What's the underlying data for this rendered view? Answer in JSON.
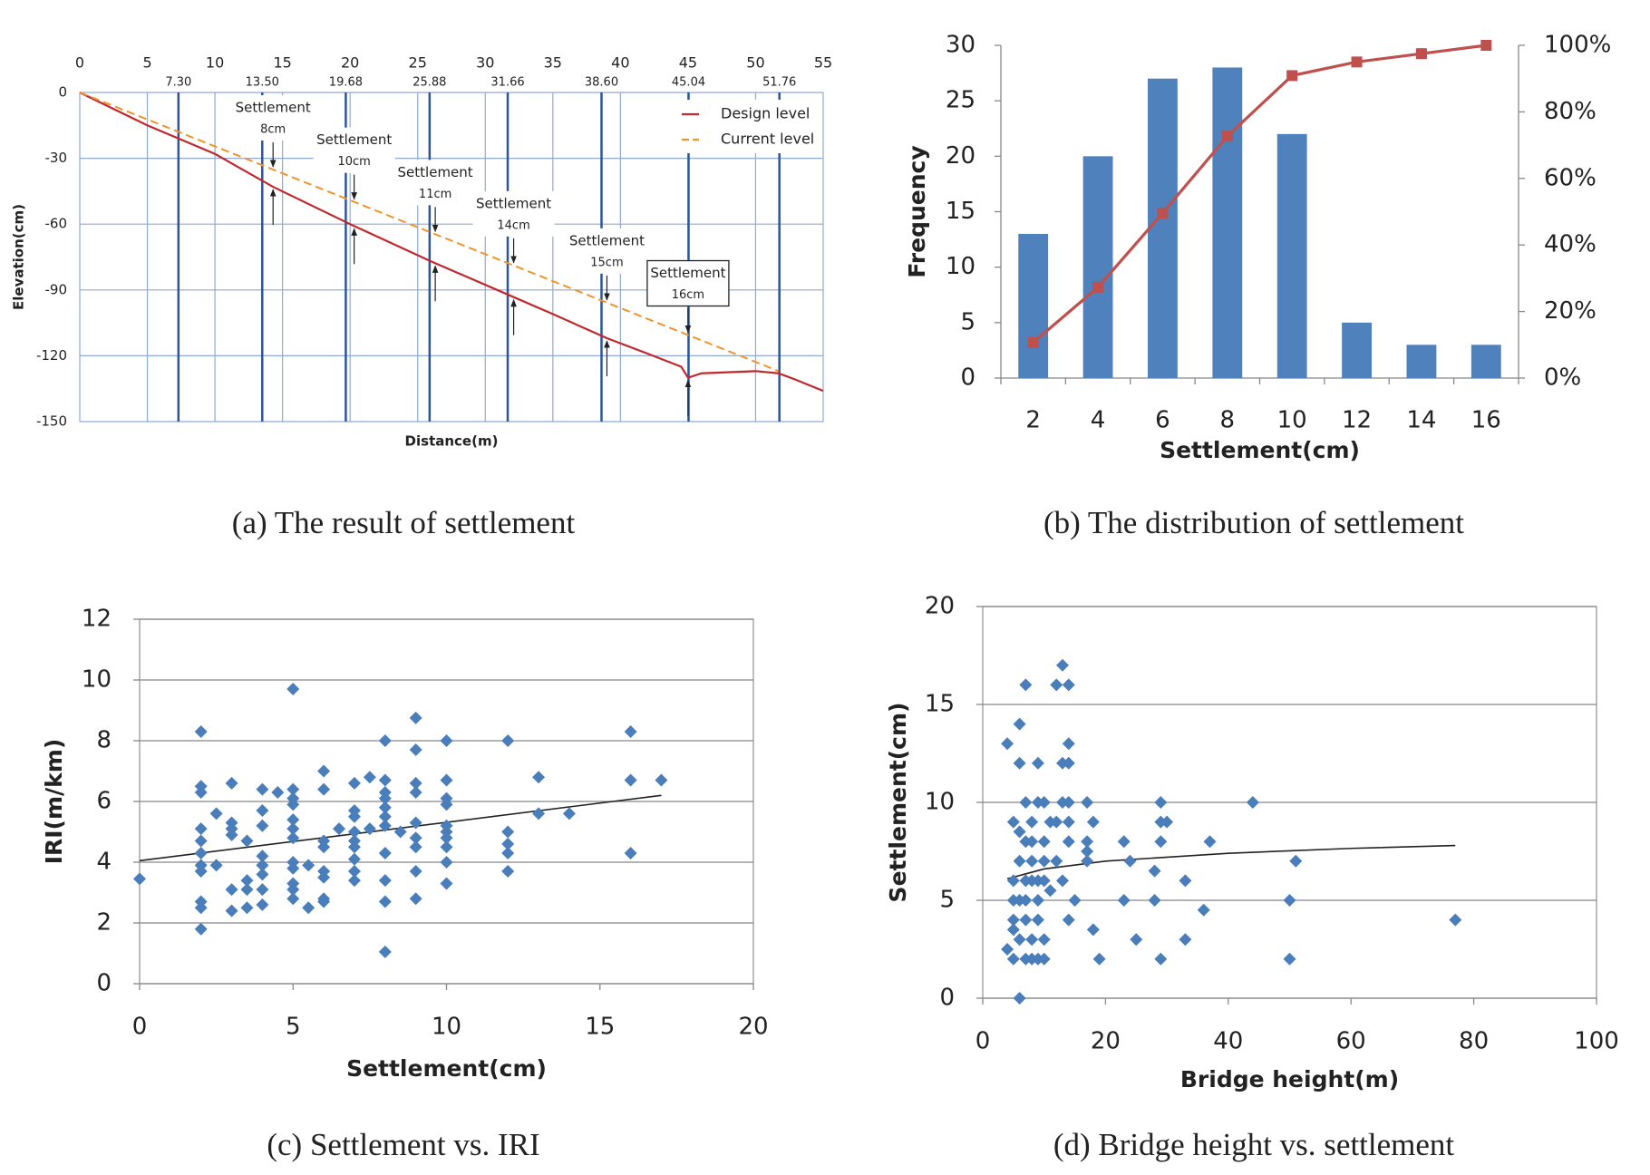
{
  "chart_data": [
    {
      "type": "line",
      "caption": "(a) The result of settlement",
      "xlabel": "Distance(m)",
      "ylabel": "Elevation(cm)",
      "xaxis": "top",
      "grid": true,
      "legend": "upper right",
      "xlim": [
        0,
        55
      ],
      "xticks": [
        0,
        5,
        10,
        15,
        20,
        25,
        30,
        35,
        40,
        45,
        50,
        55
      ],
      "ylim": [
        -150,
        0
      ],
      "yticks": [
        0,
        -30,
        -60,
        -90,
        -120,
        -150
      ],
      "xticks2": [
        {
          "value": 7.3,
          "label": "7.30"
        },
        {
          "value": 13.5,
          "label": "13.50"
        },
        19.68,
        25.88,
        31.66,
        {
          "value": 38.6,
          "label": "38.60"
        },
        45.04,
        51.76
      ],
      "series": [
        {
          "name": "Design level",
          "color": "#c0282d",
          "dash": false,
          "x": [
            0,
            5,
            10,
            14.3,
            20,
            26,
            32,
            35,
            39,
            42,
            44.5,
            45,
            46,
            50,
            51.7,
            53,
            55
          ],
          "values": [
            0,
            -15,
            -28,
            -43,
            -60,
            -77,
            -93,
            -101,
            -112,
            -119,
            -125,
            -130,
            -128,
            -127,
            -128,
            -131,
            -136
          ]
        },
        {
          "name": "Current level",
          "color": "#f0932b",
          "dash": true,
          "x": [
            0,
            51.7
          ],
          "values": [
            0,
            -127
          ]
        }
      ],
      "annotations": [
        {
          "title": "Settlement",
          "text": "8cm",
          "x": 14.3
        },
        {
          "title": "Settlement",
          "text": "10cm",
          "x": 20.3
        },
        {
          "title": "Settlement",
          "text": "11cm",
          "x": 26.3
        },
        {
          "title": "Settlement",
          "text": "14cm",
          "x": 32.1
        },
        {
          "title": "Settlement",
          "text": "15cm",
          "x": 39
        },
        {
          "title": "Settlement",
          "text": "16cm",
          "x": 45
        }
      ]
    },
    {
      "type": "bar",
      "caption": "(b) The distribution of settlement",
      "xlabel": "Settlement(cm)",
      "ylabel": "Frequency",
      "grid": false,
      "categories": [
        2,
        4,
        6,
        8,
        10,
        12,
        14,
        16
      ],
      "ylim": [
        0,
        30
      ],
      "yticks": [
        0,
        5,
        10,
        15,
        20,
        25,
        30
      ],
      "y2lim": [
        0,
        100
      ],
      "y2ticks": [
        {
          "value": 0,
          "label": "0%"
        },
        {
          "value": 20,
          "label": "20%"
        },
        {
          "value": 40,
          "label": "40%"
        },
        {
          "value": 60,
          "label": "60%"
        },
        {
          "value": 80,
          "label": "80%"
        },
        {
          "value": 100,
          "label": "100%"
        }
      ],
      "series": [
        {
          "color": "#4f81bd",
          "values": [
            13,
            20,
            27,
            28,
            22,
            5,
            3,
            3
          ]
        },
        {
          "color": "#c0504d",
          "axis": "y2",
          "values": [
            10.7,
            27.3,
            49.6,
            72.7,
            90.9,
            95.0,
            97.5,
            100
          ]
        }
      ]
    },
    {
      "type": "scatter",
      "caption": "(c) Settlement vs. IRI",
      "xlabel": "Settlement(cm)",
      "ylabel": "IRI(m/km)",
      "grid": true,
      "color": "#4a7ebb",
      "xlim": [
        0,
        20
      ],
      "xticks": [
        0,
        5,
        10,
        15,
        20
      ],
      "ylim": [
        0,
        12
      ],
      "yticks": [
        0,
        2,
        4,
        6,
        8,
        10,
        12
      ],
      "x": [
        0,
        2,
        2,
        2,
        2,
        2,
        2,
        2,
        2,
        2,
        2,
        2,
        2.5,
        2.5,
        3,
        3,
        3,
        3,
        3,
        3,
        3.5,
        3.5,
        3.5,
        3.5,
        4,
        4,
        4,
        4,
        4,
        4,
        4,
        4,
        4.5,
        5,
        5,
        5,
        5,
        5,
        5,
        5,
        5,
        5,
        5,
        5,
        5,
        5.5,
        5.5,
        6,
        6,
        6,
        6,
        6,
        6,
        6,
        6,
        6.5,
        7,
        7,
        7,
        7,
        7,
        7,
        7,
        7,
        7,
        7.5,
        7.5,
        8,
        8,
        8,
        8,
        8,
        8,
        8,
        8,
        8,
        8,
        8,
        8.5,
        9,
        9,
        9,
        9,
        9,
        9,
        9,
        9,
        9,
        10,
        10,
        10,
        10,
        10,
        10,
        10,
        10,
        10,
        10,
        12,
        12,
        12,
        12,
        12,
        13,
        13,
        14,
        16,
        16,
        16,
        17
      ],
      "values": [
        3.45,
        8.3,
        6.5,
        6.3,
        5.1,
        4.7,
        4.3,
        3.9,
        3.7,
        2.7,
        2.5,
        1.8,
        5.6,
        3.9,
        6.6,
        5.3,
        5.1,
        4.9,
        3.1,
        2.4,
        4.7,
        3.4,
        3.1,
        2.5,
        6.4,
        5.7,
        5.2,
        4.2,
        3.9,
        3.6,
        3.1,
        2.6,
        6.3,
        9.7,
        6.4,
        6.1,
        5.9,
        5.4,
        5.1,
        4.8,
        4.0,
        3.8,
        3.3,
        3.1,
        2.8,
        3.9,
        2.5,
        7.0,
        6.4,
        4.7,
        4.5,
        3.7,
        3.5,
        2.8,
        2.7,
        5.1,
        6.6,
        5.7,
        5.5,
        5.0,
        4.7,
        4.5,
        4.1,
        3.7,
        3.4,
        6.8,
        5.1,
        8.0,
        6.7,
        6.3,
        6.1,
        5.8,
        5.5,
        5.2,
        4.3,
        3.4,
        2.7,
        1.05,
        5.0,
        8.75,
        7.7,
        6.6,
        6.3,
        5.3,
        4.8,
        4.5,
        3.7,
        2.8,
        8.0,
        6.7,
        6.1,
        5.9,
        5.2,
        5.0,
        4.8,
        4.5,
        4.0,
        3.3,
        8.0,
        5.0,
        4.6,
        4.3,
        3.7,
        6.8,
        5.6,
        5.6,
        8.3,
        6.7,
        4.3,
        6.7
      ],
      "trendline": {
        "x": [
          0,
          17
        ],
        "values": [
          4.05,
          6.2
        ]
      }
    },
    {
      "type": "scatter",
      "caption": "(d) Bridge height vs. settlement",
      "xlabel": "Bridge height(m)",
      "ylabel": "Settlement(cm)",
      "grid": true,
      "color": "#4a7ebb",
      "xlim": [
        0,
        100
      ],
      "xticks": [
        0,
        20,
        40,
        60,
        80,
        100
      ],
      "ylim": [
        0,
        20
      ],
      "yticks": [
        0,
        5,
        10,
        15,
        20
      ],
      "x": [
        4,
        4,
        5,
        5,
        5,
        5,
        5,
        5,
        6,
        6,
        6,
        6,
        6,
        6,
        6,
        7,
        7,
        7,
        7,
        7,
        7,
        7,
        8,
        8,
        8,
        8,
        8,
        8,
        9,
        9,
        9,
        9,
        9,
        9,
        10,
        10,
        10,
        10,
        10,
        10,
        11,
        11,
        12,
        12,
        12,
        13,
        13,
        13,
        13,
        14,
        14,
        14,
        14,
        14,
        14,
        14,
        15,
        17,
        17,
        17,
        17,
        18,
        18,
        19,
        23,
        23,
        24,
        25,
        28,
        28,
        29,
        29,
        29,
        29,
        30,
        33,
        33,
        36,
        37,
        44,
        50,
        50,
        51,
        77
      ],
      "values": [
        13,
        2.5,
        9,
        6,
        5,
        4,
        3.5,
        2,
        14,
        12,
        8.5,
        7,
        5,
        3,
        0,
        16,
        10,
        8,
        6,
        5,
        4,
        2,
        9,
        8,
        7,
        6,
        3,
        2,
        12,
        10,
        6,
        5,
        4,
        2,
        10,
        8,
        7,
        6,
        3,
        2,
        9,
        5.5,
        16,
        9,
        7,
        17,
        12,
        10,
        6,
        16,
        13,
        12,
        10,
        9,
        8,
        4,
        5,
        10,
        8,
        7.5,
        7,
        9,
        3.5,
        2,
        8,
        5,
        7,
        3,
        6.5,
        5,
        10,
        9,
        8,
        2,
        9,
        6,
        3,
        4.5,
        8,
        10,
        5,
        2,
        7,
        4
      ],
      "trendline": {
        "x": [
          4,
          10,
          20,
          40,
          60,
          77
        ],
        "values": [
          6.1,
          6.6,
          7.0,
          7.4,
          7.65,
          7.8
        ]
      }
    }
  ]
}
